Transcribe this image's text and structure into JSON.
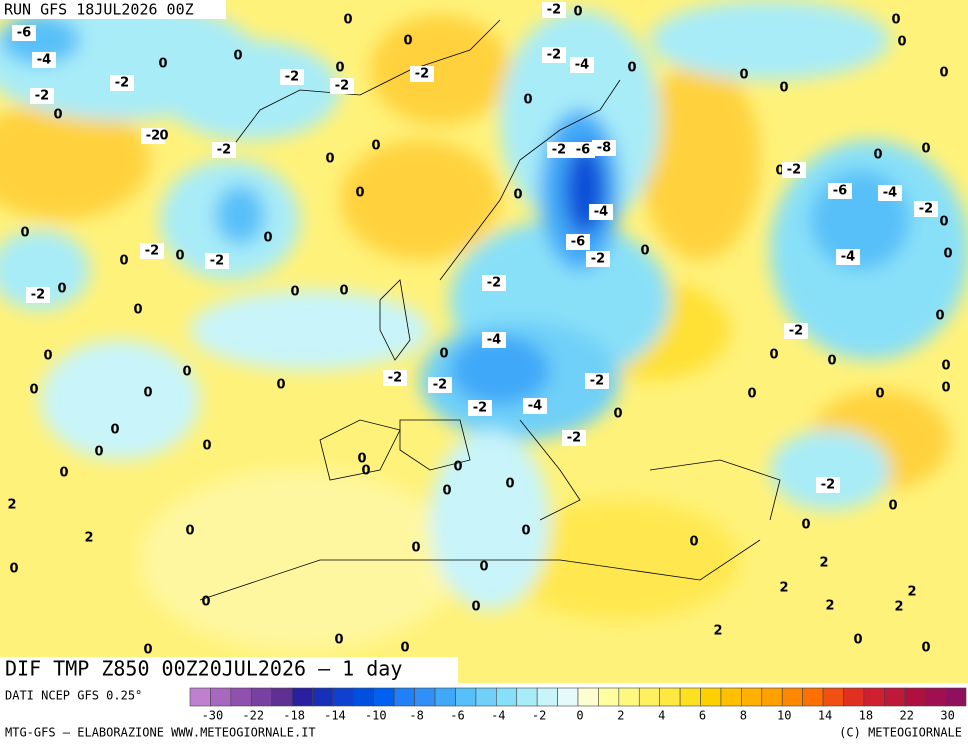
{
  "header": {
    "run": "RUN GFS 18JUL2026 00Z"
  },
  "map": {
    "title": "DIF TMP Z850 00Z20JUL2026 – 1 day",
    "contour_labels": [
      -6,
      -4,
      -2,
      0,
      -2,
      0,
      0,
      -2,
      0,
      -2,
      0,
      0,
      -2,
      -2,
      0,
      -2,
      0,
      0,
      0,
      -2,
      0,
      -2,
      -4,
      0,
      0,
      -2,
      -6,
      -8,
      0,
      -4,
      -6,
      -2,
      0,
      -2,
      -4,
      0,
      -2,
      -2,
      -2,
      -4,
      -2,
      0,
      -2,
      0,
      0,
      -2,
      -2,
      0,
      0,
      -2,
      0,
      0,
      0,
      0,
      0,
      0,
      0,
      0,
      0,
      0,
      0,
      0,
      0,
      2,
      2,
      0,
      0,
      0,
      0,
      0,
      0,
      0,
      0,
      0,
      0,
      0,
      0,
      0,
      0,
      0,
      0,
      2,
      0,
      0,
      0,
      0,
      0,
      0,
      0,
      0,
      -2,
      -6,
      -4,
      -2,
      0,
      0,
      -4,
      -2,
      0,
      0,
      0,
      0,
      0,
      0,
      0,
      -2,
      0,
      0,
      2,
      2,
      2,
      2,
      2,
      0,
      0
    ]
  },
  "legend": {
    "source": "DATI NCEP GFS 0.25°",
    "colors": [
      "#c080d0",
      "#a868c0",
      "#9050b0",
      "#7840a0",
      "#603090",
      "#2820a0",
      "#1830b8",
      "#1040d0",
      "#0050e0",
      "#0060f0",
      "#2080f8",
      "#3090f8",
      "#40a8f8",
      "#58c0f8",
      "#70d0f8",
      "#88e0f8",
      "#a8ecf8",
      "#c8f4fa",
      "#e4fafc",
      "#ffffd0",
      "#ffffa0",
      "#fff880",
      "#fff060",
      "#ffe840",
      "#ffe020",
      "#ffd000",
      "#ffc000",
      "#ffb000",
      "#ffa000",
      "#ff8800",
      "#ff7000",
      "#f05010",
      "#e03020",
      "#d02030",
      "#c01838",
      "#b01040",
      "#a01050",
      "#901060"
    ],
    "ticks": [
      -30,
      -22,
      -18,
      -14,
      -10,
      -8,
      -6,
      -4,
      -2,
      0,
      2,
      4,
      6,
      8,
      10,
      14,
      18,
      22,
      30
    ]
  },
  "footer": {
    "credit": "MTG-GFS – ELABORAZIONE WWW.METEOGIORNALE.IT",
    "copyright": "(C) METEOGIORNALE"
  }
}
